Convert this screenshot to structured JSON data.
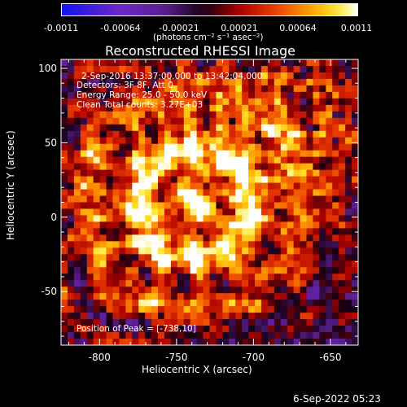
{
  "colorbar": {
    "ticks": [
      "-0.0011",
      "-0.00064",
      "-0.00021",
      "0.00021",
      "0.00064",
      "0.0011"
    ],
    "unit": "(photons cm⁻² s⁻¹ asec⁻²)",
    "vmin": -0.0011,
    "vmax": 0.0011
  },
  "chart_data": {
    "type": "heatmap",
    "title": "Reconstructed RHESSI Image",
    "xlabel": "Heliocentric X (arcsec)",
    "ylabel": "Heliocentric Y (arcsec)",
    "xlim": [
      -825,
      -632
    ],
    "ylim": [
      -86,
      106
    ],
    "xticks": [
      -800,
      -750,
      -700,
      -650
    ],
    "yticks": [
      -50,
      0,
      50,
      100
    ],
    "peak_position": [
      -738,
      10
    ]
  },
  "annotations": {
    "time_range": "2-Sep-2016 13:37:00.000 to 13:42:04.000",
    "detectors": "Detectors: 3F 8F, Att 0",
    "energy": "Energy Range: 25.0 - 50.0 keV",
    "clean": "Clean     Total counts: 3.27E+03",
    "peak": "Position of Peak = [-738,10]"
  },
  "footer": {
    "timestamp": "6-Sep-2022 05:23"
  }
}
